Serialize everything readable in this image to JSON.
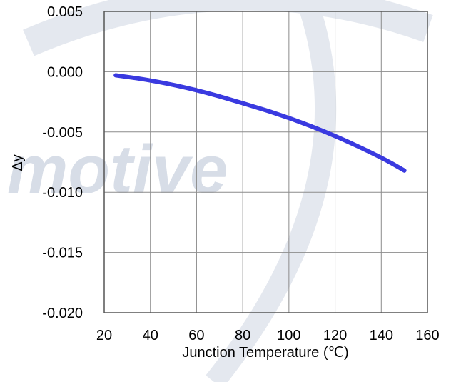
{
  "watermark": {
    "text": "motive",
    "color": "#d7dde7"
  },
  "chart_data": {
    "type": "line",
    "title": "",
    "xlabel": "Junction Temperature (℃)",
    "ylabel": "Δy",
    "xlim": [
      20,
      160
    ],
    "ylim": [
      -0.02,
      0.005
    ],
    "x_ticks": [
      "20",
      "40",
      "60",
      "80",
      "100",
      "120",
      "140",
      "160"
    ],
    "y_ticks": [
      "0.005",
      "0.000",
      "-0.005",
      "-0.010",
      "-0.015",
      "-0.020"
    ],
    "grid": true,
    "series": [
      {
        "color": "#3a3ae0",
        "x": [
          25,
          40,
          60,
          80,
          100,
          120,
          140,
          150
        ],
        "y": [
          -0.0003,
          -0.0007,
          -0.0015,
          -0.0026,
          -0.0038,
          -0.0053,
          -0.0071,
          -0.0082
        ]
      }
    ]
  }
}
